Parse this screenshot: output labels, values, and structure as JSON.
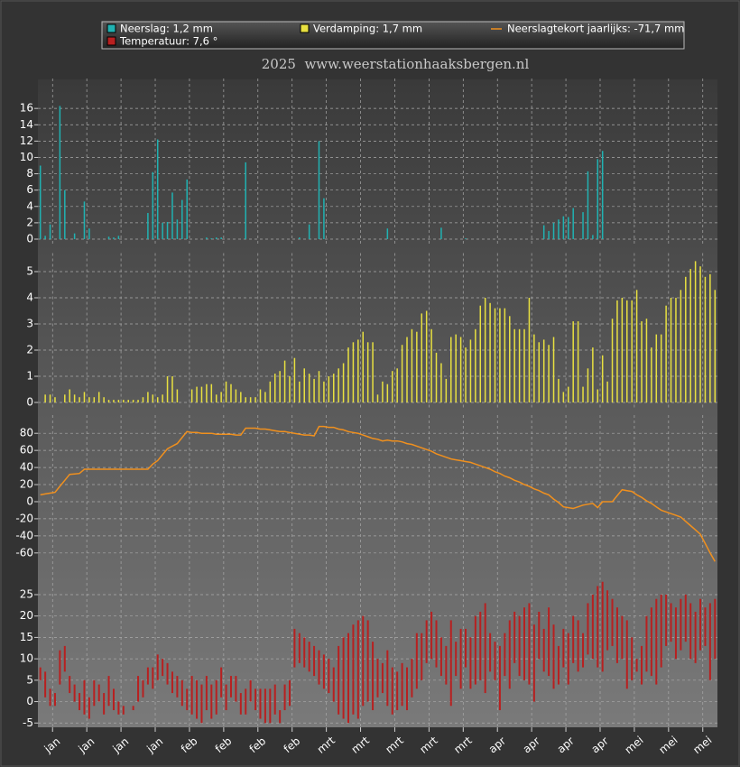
{
  "chart_data": [
    {
      "type": "bar",
      "title": "2025  www.weerstationhaaksbergen.nl",
      "series": [
        {
          "name": "Neerslag: 1,2 mm",
          "color": "#20b2b2",
          "values": [
            9.0,
            0.4,
            1.8,
            0,
            16.3,
            6.0,
            0,
            0.7,
            0,
            4.6,
            1.3,
            0,
            0,
            0,
            0.3,
            0.2,
            0.4,
            0,
            0,
            0,
            0,
            0,
            3.2,
            8.2,
            12.2,
            2.0,
            2.1,
            5.7,
            2.4,
            4.8,
            7.3,
            0,
            0,
            0,
            0.2,
            0.1,
            0.2,
            0.2,
            0,
            0,
            0,
            0,
            9.4,
            0,
            0,
            0,
            0,
            0,
            0,
            0,
            0,
            0,
            0,
            0.2,
            0,
            1.8,
            0,
            12.0,
            5.0,
            0,
            0,
            0,
            0,
            0,
            0,
            0,
            0,
            0,
            0,
            0,
            0,
            1.3,
            0,
            0,
            0,
            0,
            0,
            0,
            0,
            0,
            0,
            0,
            1.4,
            0,
            0,
            0,
            0,
            0.1,
            0,
            0,
            0,
            0,
            0,
            0,
            0,
            0,
            0,
            0,
            0,
            0,
            0,
            0,
            0,
            1.7,
            1.0,
            2.0,
            2.4,
            2.8,
            2.7,
            3.8,
            0,
            3.3,
            8.3,
            0.5,
            9.8,
            10.8,
            0,
            0,
            0,
            0,
            0,
            0,
            0,
            0,
            0,
            0,
            0,
            0,
            0,
            0,
            0,
            0,
            0,
            0,
            0,
            0,
            0,
            0,
            0
          ]
        }
      ],
      "ylim": [
        0,
        19
      ],
      "yticks": [
        0,
        2,
        4,
        6,
        8,
        10,
        12,
        14,
        16
      ],
      "grid": true
    },
    {
      "type": "bar",
      "series": [
        {
          "name": "Verdamping: 1,7 mm",
          "color": "#e8e040",
          "values": [
            0,
            0.3,
            0.3,
            0.2,
            0,
            0.3,
            0.5,
            0.3,
            0.2,
            0.4,
            0.2,
            0.2,
            0.4,
            0.2,
            0.1,
            0.1,
            0.1,
            0.1,
            0.1,
            0.1,
            0.1,
            0.2,
            0.4,
            0.3,
            0.2,
            0.3,
            1.0,
            1.0,
            0.5,
            0,
            0,
            0.5,
            0.6,
            0.6,
            0.7,
            0.7,
            0.3,
            0.4,
            0.8,
            0.7,
            0.5,
            0.4,
            0.2,
            0.2,
            0.2,
            0.5,
            0.4,
            0.8,
            1.1,
            1.2,
            1.6,
            1.0,
            1.7,
            0.8,
            1.3,
            1.1,
            0.9,
            1.2,
            0.8,
            1.0,
            1.1,
            1.3,
            1.5,
            2.1,
            2.3,
            2.4,
            2.7,
            2.3,
            2.3,
            0.3,
            0.8,
            0.7,
            1.2,
            1.3,
            2.2,
            2.5,
            2.8,
            2.7,
            3.4,
            3.5,
            2.8,
            1.9,
            1.5,
            0.9,
            2.5,
            2.6,
            2.5,
            2.1,
            2.4,
            2.8,
            3.7,
            4.0,
            3.8,
            3.6,
            3.6,
            3.6,
            3.3,
            2.8,
            2.8,
            2.8,
            4.0,
            2.6,
            2.3,
            2.4,
            2.2,
            2.5,
            0.9,
            0.4,
            0.6,
            3.1,
            3.1,
            0.6,
            1.3,
            2.1,
            0.5,
            1.8,
            0.8,
            3.2,
            3.9,
            4.0,
            3.9,
            3.9,
            4.3,
            3.1,
            3.2,
            2.1,
            2.6,
            2.6,
            3.7,
            4.0,
            4.0,
            4.3,
            4.8,
            5.1,
            5.4,
            5.2,
            4.8,
            4.9,
            4.3
          ]
        }
      ],
      "ylim": [
        0,
        5.5
      ],
      "yticks": [
        0,
        1,
        2,
        3,
        4,
        5
      ],
      "grid": true
    },
    {
      "type": "line",
      "series": [
        {
          "name": "Neerslagtekort jaarlijks: -71,7 mm",
          "color": "#f0901e",
          "values": [
            8,
            9,
            10,
            11,
            18,
            25,
            32,
            32.5,
            33,
            38,
            38,
            38,
            38,
            38,
            38,
            38,
            38,
            38,
            38,
            38,
            38,
            38,
            38,
            44,
            48,
            55,
            62,
            65,
            68,
            75,
            82,
            81,
            81,
            80,
            80,
            80,
            79,
            79,
            79,
            79,
            78,
            78,
            86,
            86,
            86,
            85,
            85,
            84,
            83,
            82,
            82,
            81,
            80,
            79,
            78,
            78,
            77,
            88,
            88,
            87,
            87,
            85,
            84,
            82,
            81,
            80,
            78,
            76,
            74,
            73,
            71,
            72,
            71,
            71,
            70,
            68,
            67,
            65,
            63,
            61,
            59,
            56,
            54,
            52,
            50,
            49,
            48,
            47,
            46,
            44,
            42,
            40,
            38,
            35,
            33,
            30,
            28,
            25,
            23,
            20,
            18,
            15,
            13,
            10,
            8,
            3,
            -1,
            -6,
            -7,
            -8,
            -6,
            -4,
            -3,
            -2,
            -7,
            0,
            0,
            0,
            7,
            14,
            13,
            12,
            8,
            5,
            1,
            -2,
            -6,
            -10,
            -12,
            -14,
            -16,
            -18,
            -23,
            -28,
            -33,
            -38,
            -49,
            -60,
            -70
          ]
        }
      ],
      "ylim": [
        -75,
        95
      ],
      "yticks": [
        -60,
        -40,
        -20,
        0,
        20,
        40,
        60,
        80
      ],
      "grid": true
    },
    {
      "type": "range",
      "series": [
        {
          "name": "Temperatuur: 7,6 °",
          "color": "#b82020",
          "values": [
            8,
            7,
            3,
            2,
            12,
            13,
            6,
            4,
            2,
            5,
            1,
            5,
            4,
            2,
            6,
            3,
            0,
            -1,
            -2,
            -1,
            6,
            5,
            8,
            8,
            11,
            10,
            9,
            7,
            6,
            5,
            3,
            6,
            5,
            4,
            6,
            4,
            5,
            8,
            4,
            6,
            6,
            2,
            3,
            5,
            3,
            3,
            3,
            3,
            4,
            -2,
            4,
            5,
            17,
            16,
            15,
            14,
            13,
            12,
            11,
            10,
            8,
            13,
            15,
            16,
            18,
            19,
            20,
            19,
            14,
            10,
            9,
            12,
            8,
            7,
            9,
            8,
            10,
            16,
            16,
            19,
            21,
            19,
            15,
            13,
            19,
            14,
            17,
            17,
            15,
            20,
            21,
            23,
            16,
            14,
            13,
            16,
            19,
            21,
            20,
            22,
            23,
            18,
            21,
            17,
            22,
            18,
            13,
            17,
            16,
            20,
            19,
            16,
            23,
            25,
            27,
            28,
            26,
            24,
            22,
            20,
            19,
            15,
            10,
            13,
            20,
            22,
            24,
            25,
            25,
            23,
            22,
            24,
            25,
            23,
            21,
            24,
            22,
            23,
            24
          ],
          "lows": [
            5,
            1,
            -1,
            -1,
            4,
            7,
            2,
            0,
            -2,
            -3,
            -4,
            -1,
            0,
            -3,
            -1,
            -2,
            -3,
            -3,
            -2,
            -2,
            0,
            1,
            4,
            3,
            5,
            6,
            4,
            2,
            1,
            -1,
            -2,
            -3,
            -4,
            -5,
            -2,
            -4,
            -3,
            1,
            -2,
            1,
            0,
            -3,
            -3,
            0,
            -2,
            -4,
            -5,
            -5,
            -3,
            -5,
            -2,
            -1,
            8,
            9,
            8,
            7,
            6,
            4,
            3,
            2,
            0,
            -3,
            -4,
            -5,
            -3,
            -4,
            -1,
            0,
            -2,
            1,
            2,
            -1,
            -3,
            -2,
            -1,
            -2,
            1,
            3,
            5,
            9,
            10,
            8,
            6,
            4,
            -1,
            6,
            3,
            8,
            3,
            4,
            5,
            2,
            7,
            5,
            -2,
            6,
            3,
            9,
            6,
            5,
            4,
            0,
            10,
            7,
            6,
            3,
            4,
            8,
            4,
            9,
            7,
            8,
            11,
            10,
            8,
            7,
            12,
            13,
            9,
            10,
            3,
            5,
            7,
            4,
            7,
            6,
            4,
            8,
            13,
            14,
            10,
            12,
            14,
            10,
            9,
            12,
            13,
            5,
            10
          ]
        }
      ],
      "ylim": [
        -6,
        29
      ],
      "yticks": [
        -5,
        0,
        5,
        10,
        15,
        20,
        25
      ],
      "grid": true,
      "xlim": [
        0,
        139
      ],
      "xticks": [
        {
          "value": 3,
          "label": "jan"
        },
        {
          "value": 10,
          "label": "jan"
        },
        {
          "value": 17,
          "label": "jan"
        },
        {
          "value": 24,
          "label": "jan"
        },
        {
          "value": 31,
          "label": "feb"
        },
        {
          "value": 38,
          "label": "feb"
        },
        {
          "value": 45,
          "label": "feb"
        },
        {
          "value": 52,
          "label": "feb"
        },
        {
          "value": 59,
          "label": "mrt"
        },
        {
          "value": 66,
          "label": "mrt"
        },
        {
          "value": 73,
          "label": "mrt"
        },
        {
          "value": 80,
          "label": "mrt"
        },
        {
          "value": 87,
          "label": "mrt"
        },
        {
          "value": 94,
          "label": "apr"
        },
        {
          "value": 101,
          "label": "apr"
        },
        {
          "value": 108,
          "label": "apr"
        },
        {
          "value": 115,
          "label": "apr"
        },
        {
          "value": 122,
          "label": "mei"
        },
        {
          "value": 129,
          "label": "mei"
        },
        {
          "value": 136,
          "label": "mei"
        }
      ]
    }
  ]
}
